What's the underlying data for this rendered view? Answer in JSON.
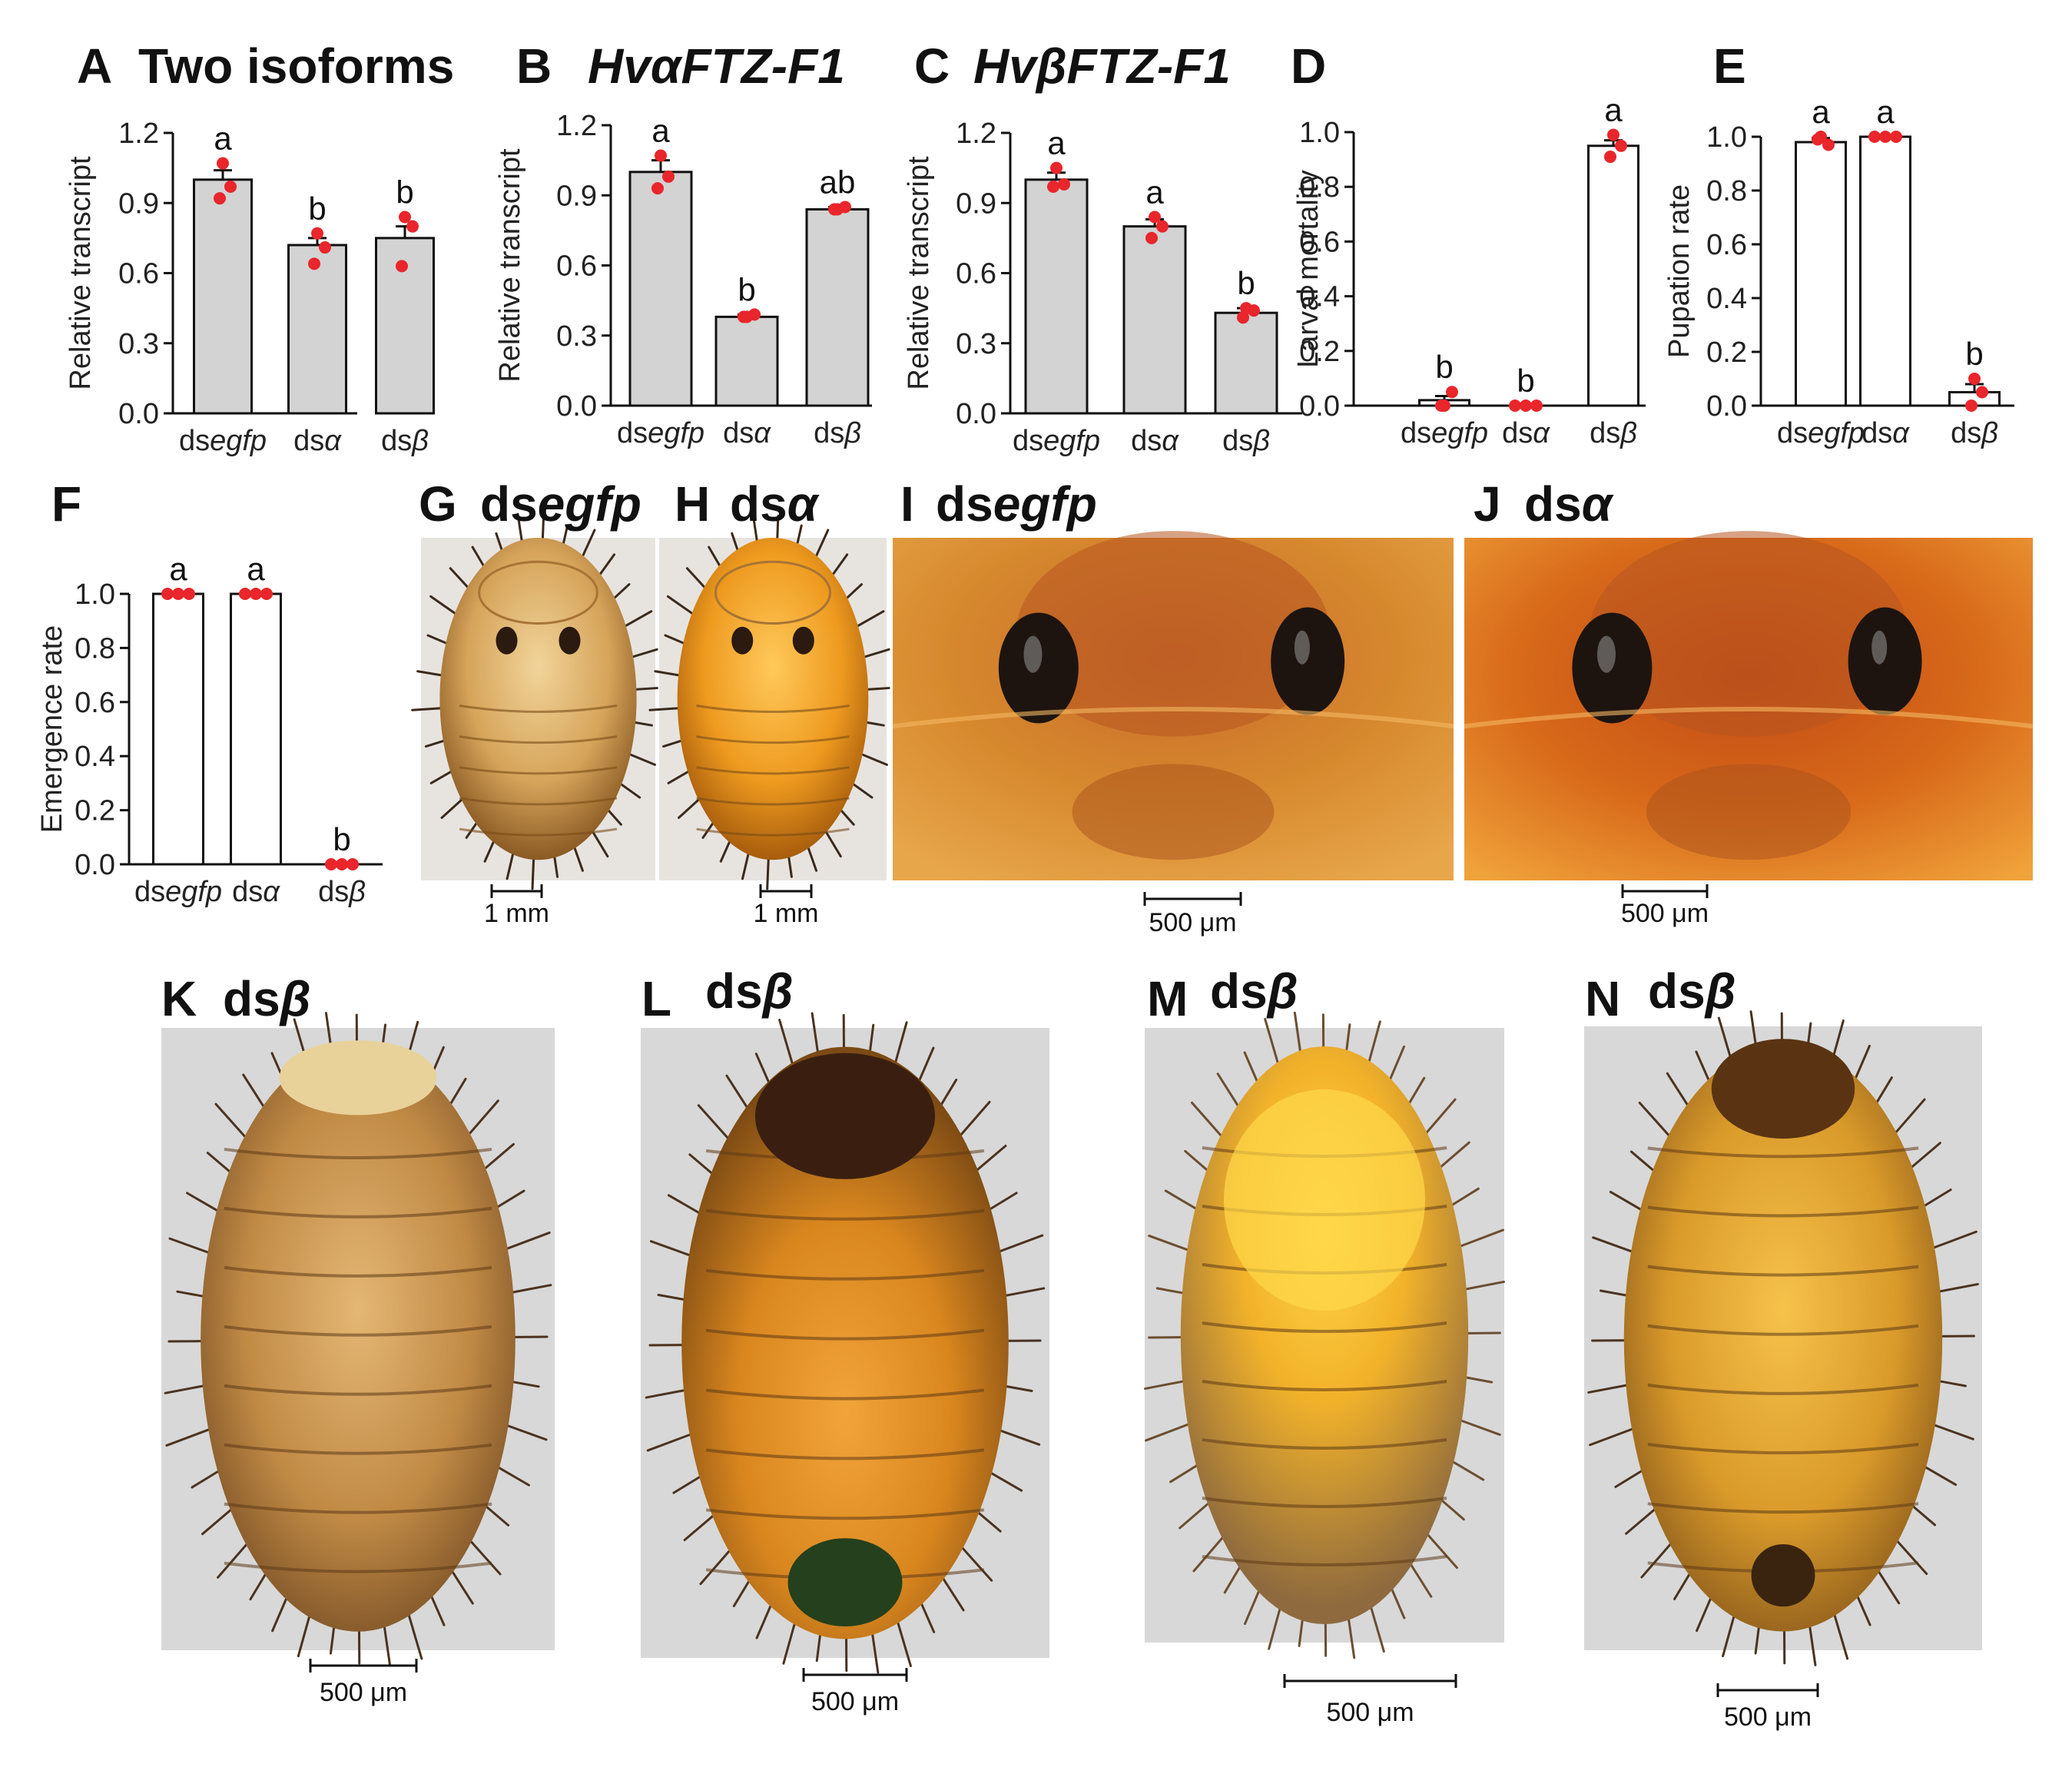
{
  "colors": {
    "bar_gray": "#d3d3d3",
    "bar_white": "#ffffff",
    "point": "#e8262b",
    "axis": "#111111"
  },
  "chart_data": [
    {
      "id": "A",
      "type": "bar",
      "panel_label": "A",
      "title": "Two isoforms",
      "title_italic": false,
      "ylabel": "Relative transcript",
      "ylim": [
        0,
        1.2
      ],
      "yticks": [
        "0.0",
        "0.3",
        "0.6",
        "0.9",
        "1.2"
      ],
      "categories": [
        {
          "prefix": "ds",
          "italic": "egfp"
        },
        {
          "prefix": "ds",
          "italic": "α"
        },
        {
          "prefix": "ds",
          "italic": "β"
        }
      ],
      "values": [
        1.0,
        0.72,
        0.75
      ],
      "errors": [
        0.04,
        0.03,
        0.05
      ],
      "points": [
        [
          1.07,
          0.97,
          0.92
        ],
        [
          0.77,
          0.71,
          0.64
        ],
        [
          0.84,
          0.8,
          0.63
        ]
      ],
      "significance": [
        "a",
        "b",
        "b"
      ],
      "fill": "gray"
    },
    {
      "id": "B",
      "type": "bar",
      "panel_label": "B",
      "title": "HvαFTZ-F1",
      "title_italic": true,
      "ylabel": "Relative transcript",
      "ylim": [
        0,
        1.2
      ],
      "yticks": [
        "0.0",
        "0.3",
        "0.6",
        "0.9",
        "1.2"
      ],
      "categories": [
        {
          "prefix": "ds",
          "italic": "egfp"
        },
        {
          "prefix": "ds",
          "italic": "α"
        },
        {
          "prefix": "ds",
          "italic": "β"
        }
      ],
      "values": [
        1.0,
        0.38,
        0.84
      ],
      "errors": [
        0.05,
        0.01,
        0.01
      ],
      "points": [
        [
          1.07,
          0.98,
          0.93
        ],
        [
          0.38,
          0.39,
          0.38
        ],
        [
          0.84,
          0.85,
          0.84
        ]
      ],
      "significance": [
        "a",
        "b",
        "ab"
      ],
      "fill": "gray"
    },
    {
      "id": "C",
      "type": "bar",
      "panel_label": "C",
      "title": "HvβFTZ-F1",
      "title_italic": true,
      "ylabel": "Relative transcript",
      "ylim": [
        0,
        1.2
      ],
      "yticks": [
        "0.0",
        "0.3",
        "0.6",
        "0.9",
        "1.2"
      ],
      "categories": [
        {
          "prefix": "ds",
          "italic": "egfp"
        },
        {
          "prefix": "ds",
          "italic": "α"
        },
        {
          "prefix": "ds",
          "italic": "β"
        }
      ],
      "values": [
        1.0,
        0.8,
        0.43
      ],
      "errors": [
        0.03,
        0.03,
        0.02
      ],
      "points": [
        [
          1.05,
          0.98,
          0.97
        ],
        [
          0.84,
          0.8,
          0.75
        ],
        [
          0.45,
          0.44,
          0.41
        ]
      ],
      "significance": [
        "a",
        "a",
        "b"
      ],
      "fill": "gray"
    },
    {
      "id": "D",
      "type": "bar",
      "panel_label": "D",
      "title": "",
      "title_italic": false,
      "ylabel": "Larval mortality",
      "ylim": [
        0,
        1.0
      ],
      "yticks": [
        "0.0",
        "0.2",
        "0.4",
        "0.6",
        "0.8",
        "1.0"
      ],
      "categories": [
        {
          "prefix": "ds",
          "italic": "egfp"
        },
        {
          "prefix": "ds",
          "italic": "α"
        },
        {
          "prefix": "ds",
          "italic": "β"
        }
      ],
      "values": [
        0.02,
        0.0,
        0.95
      ],
      "errors": [
        0.015,
        0.0,
        0.02
      ],
      "points": [
        [
          0.0,
          0.05,
          0.0
        ],
        [
          0.0,
          0.0,
          0.0
        ],
        [
          0.99,
          0.95,
          0.91
        ]
      ],
      "significance": [
        "b",
        "b",
        "a"
      ],
      "fill": "white"
    },
    {
      "id": "E",
      "type": "bar",
      "panel_label": "E",
      "title": "",
      "title_italic": false,
      "ylabel": "Pupation rate",
      "ylim": [
        0,
        1.0
      ],
      "yticks": [
        "0.0",
        "0.2",
        "0.4",
        "0.6",
        "0.8",
        "1.0"
      ],
      "categories": [
        {
          "prefix": "ds",
          "italic": "egfp"
        },
        {
          "prefix": "ds",
          "italic": "α"
        },
        {
          "prefix": "ds",
          "italic": "β"
        }
      ],
      "values": [
        0.98,
        1.0,
        0.05
      ],
      "errors": [
        0.015,
        0.0,
        0.03
      ],
      "points": [
        [
          1.0,
          0.97,
          0.99
        ],
        [
          1.0,
          1.0,
          1.0
        ],
        [
          0.1,
          0.05,
          0.0
        ]
      ],
      "significance": [
        "a",
        "a",
        "b"
      ],
      "fill": "white"
    },
    {
      "id": "F",
      "type": "bar",
      "panel_label": "F",
      "title": "",
      "title_italic": false,
      "ylabel": "Emergence rate",
      "ylim": [
        0,
        1.0
      ],
      "yticks": [
        "0.0",
        "0.2",
        "0.4",
        "0.6",
        "0.8",
        "1.0"
      ],
      "categories": [
        {
          "prefix": "ds",
          "italic": "egfp"
        },
        {
          "prefix": "ds",
          "italic": "α"
        },
        {
          "prefix": "ds",
          "italic": "β"
        }
      ],
      "values": [
        1.0,
        1.0,
        0.0
      ],
      "errors": [
        0.0,
        0.0,
        0.0
      ],
      "points": [
        [
          1.0,
          1.0,
          1.0
        ],
        [
          1.0,
          1.0,
          1.0
        ],
        [
          0.0,
          0.0,
          0.0
        ]
      ],
      "significance": [
        "a",
        "a",
        "b"
      ],
      "fill": "white"
    }
  ],
  "photos": [
    {
      "id": "G",
      "label": "G",
      "title_prefix": "ds",
      "title_italic": "egfp",
      "scale": "1 mm",
      "style": "pupa-pale"
    },
    {
      "id": "H",
      "label": "H",
      "title_prefix": "ds",
      "title_italic": "α",
      "scale": "1 mm",
      "style": "pupa-orange"
    },
    {
      "id": "I",
      "label": "I",
      "title_prefix": "ds",
      "title_italic": "egfp",
      "scale": "500 μm",
      "style": "closeup-brown"
    },
    {
      "id": "J",
      "label": "J",
      "title_prefix": "ds",
      "title_italic": "α",
      "scale": "500 μm",
      "style": "closeup-red"
    },
    {
      "id": "K",
      "label": "K",
      "title_prefix": "ds",
      "title_italic": "β",
      "scale": "500 μm",
      "style": "larva-brown"
    },
    {
      "id": "L",
      "label": "L",
      "title_prefix": "ds",
      "title_italic": "β",
      "scale": "500 μm",
      "style": "larva-dark"
    },
    {
      "id": "M",
      "label": "M",
      "title_prefix": "ds",
      "title_italic": "β",
      "scale": "500 μm",
      "style": "larva-yellow"
    },
    {
      "id": "N",
      "label": "N",
      "title_prefix": "ds",
      "title_italic": "β",
      "scale": "500 μm",
      "style": "larva-amber"
    }
  ]
}
